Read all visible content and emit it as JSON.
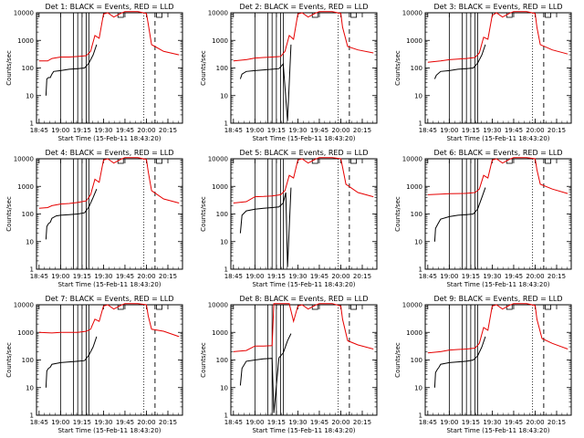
{
  "chart_data": {
    "type": "line",
    "x_unit": "time of day (15-Feb-11), hours",
    "xlim": [
      18.72,
      20.42
    ],
    "xticks": [
      "18:45",
      "19:00",
      "19:15",
      "19:30",
      "19:45",
      "20:00",
      "20:15"
    ],
    "xlabel": "Start Time (15-Feb-11 18:43:20)",
    "ylabel": "Counts/sec",
    "yscale": "log",
    "ylim": [
      1,
      10000
    ],
    "yticks": [
      "1",
      "10",
      "100",
      "1000",
      "10000"
    ],
    "grid": false,
    "colors": {
      "events": "#000000",
      "lld": "#e60000"
    },
    "panels": [
      {
        "title": "Det 1: BLACK = Events, RED = LLD",
        "events": [
          [
            18.83,
            10
          ],
          [
            18.84,
            40
          ],
          [
            18.86,
            45
          ],
          [
            18.88,
            45
          ],
          [
            18.9,
            60
          ],
          [
            18.92,
            75
          ],
          [
            19.0,
            80
          ],
          [
            19.1,
            90
          ],
          [
            19.2,
            95
          ],
          [
            19.28,
            100
          ],
          [
            19.33,
            150
          ],
          [
            19.38,
            300
          ],
          [
            19.42,
            700
          ]
        ],
        "lld": [
          [
            18.75,
            180
          ],
          [
            18.85,
            180
          ],
          [
            18.9,
            220
          ],
          [
            19.0,
            250
          ],
          [
            19.1,
            250
          ],
          [
            19.2,
            260
          ],
          [
            19.3,
            280
          ],
          [
            19.35,
            400
          ],
          [
            19.4,
            1500
          ],
          [
            19.45,
            1200
          ],
          [
            19.5,
            9000
          ],
          [
            19.55,
            10000
          ],
          [
            19.62,
            7000
          ],
          [
            19.7,
            9500
          ],
          [
            19.75,
            11000
          ],
          [
            19.9,
            11000
          ],
          [
            20.0,
            9500
          ],
          [
            20.02,
            4000
          ],
          [
            20.06,
            700
          ],
          [
            20.1,
            600
          ],
          [
            20.2,
            400
          ],
          [
            20.38,
            300
          ]
        ]
      },
      {
        "title": "Det 2: BLACK = Events, RED = LLD",
        "events": [
          [
            18.83,
            40
          ],
          [
            18.85,
            60
          ],
          [
            18.9,
            75
          ],
          [
            19.0,
            80
          ],
          [
            19.1,
            85
          ],
          [
            19.2,
            90
          ],
          [
            19.28,
            95
          ],
          [
            19.33,
            140
          ],
          [
            19.38,
            1.2
          ],
          [
            19.42,
            700
          ]
        ],
        "lld": [
          [
            18.75,
            180
          ],
          [
            18.9,
            200
          ],
          [
            19.0,
            230
          ],
          [
            19.1,
            240
          ],
          [
            19.2,
            250
          ],
          [
            19.3,
            260
          ],
          [
            19.35,
            400
          ],
          [
            19.4,
            1500
          ],
          [
            19.45,
            1100
          ],
          [
            19.5,
            9000
          ],
          [
            19.55,
            10000
          ],
          [
            19.62,
            7000
          ],
          [
            19.7,
            9500
          ],
          [
            19.75,
            11000
          ],
          [
            19.9,
            11000
          ],
          [
            20.0,
            9500
          ],
          [
            20.02,
            3000
          ],
          [
            20.08,
            600
          ],
          [
            20.2,
            450
          ],
          [
            20.38,
            350
          ]
        ]
      },
      {
        "title": "Det 3: BLACK = Events, RED = LLD",
        "events": [
          [
            18.83,
            40
          ],
          [
            18.85,
            55
          ],
          [
            18.9,
            75
          ],
          [
            19.0,
            80
          ],
          [
            19.1,
            90
          ],
          [
            19.2,
            95
          ],
          [
            19.28,
            100
          ],
          [
            19.33,
            150
          ],
          [
            19.38,
            300
          ],
          [
            19.42,
            700
          ]
        ],
        "lld": [
          [
            18.75,
            160
          ],
          [
            18.9,
            180
          ],
          [
            19.0,
            200
          ],
          [
            19.1,
            210
          ],
          [
            19.2,
            220
          ],
          [
            19.3,
            240
          ],
          [
            19.35,
            350
          ],
          [
            19.4,
            1300
          ],
          [
            19.45,
            1100
          ],
          [
            19.5,
            8000
          ],
          [
            19.55,
            10000
          ],
          [
            19.62,
            7000
          ],
          [
            19.7,
            9500
          ],
          [
            19.75,
            11000
          ],
          [
            19.9,
            11000
          ],
          [
            20.0,
            9500
          ],
          [
            20.02,
            3000
          ],
          [
            20.06,
            700
          ],
          [
            20.2,
            450
          ],
          [
            20.38,
            320
          ]
        ]
      },
      {
        "title": "Det 4: BLACK = Events, RED = LLD",
        "events": [
          [
            18.83,
            12
          ],
          [
            18.84,
            35
          ],
          [
            18.86,
            45
          ],
          [
            18.88,
            50
          ],
          [
            18.9,
            70
          ],
          [
            18.95,
            85
          ],
          [
            19.0,
            90
          ],
          [
            19.1,
            95
          ],
          [
            19.2,
            100
          ],
          [
            19.28,
            110
          ],
          [
            19.33,
            180
          ],
          [
            19.38,
            400
          ],
          [
            19.42,
            800
          ]
        ],
        "lld": [
          [
            18.75,
            160
          ],
          [
            18.85,
            170
          ],
          [
            18.9,
            200
          ],
          [
            19.0,
            230
          ],
          [
            19.1,
            240
          ],
          [
            19.2,
            260
          ],
          [
            19.3,
            300
          ],
          [
            19.35,
            500
          ],
          [
            19.4,
            1800
          ],
          [
            19.45,
            1400
          ],
          [
            19.5,
            9000
          ],
          [
            19.55,
            10000
          ],
          [
            19.62,
            7000
          ],
          [
            19.7,
            9500
          ],
          [
            19.75,
            11000
          ],
          [
            19.9,
            11000
          ],
          [
            20.0,
            9500
          ],
          [
            20.02,
            3500
          ],
          [
            20.06,
            700
          ],
          [
            20.2,
            350
          ],
          [
            20.38,
            250
          ]
        ]
      },
      {
        "title": "Det 5: BLACK = Events, RED = LLD",
        "events": [
          [
            18.83,
            20
          ],
          [
            18.85,
            90
          ],
          [
            18.9,
            130
          ],
          [
            19.0,
            150
          ],
          [
            19.1,
            160
          ],
          [
            19.2,
            170
          ],
          [
            19.28,
            180
          ],
          [
            19.33,
            250
          ],
          [
            19.36,
            600
          ],
          [
            19.38,
            1.2
          ],
          [
            19.42,
            900
          ]
        ],
        "lld": [
          [
            18.75,
            250
          ],
          [
            18.9,
            280
          ],
          [
            19.0,
            420
          ],
          [
            19.1,
            430
          ],
          [
            19.2,
            450
          ],
          [
            19.3,
            500
          ],
          [
            19.35,
            700
          ],
          [
            19.4,
            2500
          ],
          [
            19.45,
            2000
          ],
          [
            19.5,
            9000
          ],
          [
            19.55,
            10000
          ],
          [
            19.62,
            7000
          ],
          [
            19.7,
            9500
          ],
          [
            19.75,
            11000
          ],
          [
            19.9,
            11000
          ],
          [
            20.0,
            10000
          ],
          [
            20.02,
            5000
          ],
          [
            20.06,
            1200
          ],
          [
            20.2,
            600
          ],
          [
            20.38,
            420
          ]
        ]
      },
      {
        "title": "Det 6: BLACK = Events, RED = LLD",
        "events": [
          [
            18.83,
            10
          ],
          [
            18.84,
            30
          ],
          [
            18.87,
            45
          ],
          [
            18.9,
            65
          ],
          [
            19.0,
            80
          ],
          [
            19.1,
            90
          ],
          [
            19.2,
            95
          ],
          [
            19.28,
            100
          ],
          [
            19.33,
            150
          ],
          [
            19.38,
            400
          ],
          [
            19.42,
            900
          ]
        ],
        "lld": [
          [
            18.75,
            500
          ],
          [
            18.9,
            520
          ],
          [
            19.0,
            540
          ],
          [
            19.1,
            550
          ],
          [
            19.2,
            560
          ],
          [
            19.3,
            600
          ],
          [
            19.35,
            800
          ],
          [
            19.4,
            2500
          ],
          [
            19.45,
            2000
          ],
          [
            19.5,
            9000
          ],
          [
            19.55,
            10000
          ],
          [
            19.62,
            7000
          ],
          [
            19.7,
            9500
          ],
          [
            19.75,
            11000
          ],
          [
            19.9,
            11000
          ],
          [
            20.0,
            10000
          ],
          [
            20.02,
            4000
          ],
          [
            20.06,
            1200
          ],
          [
            20.2,
            800
          ],
          [
            20.38,
            550
          ]
        ]
      },
      {
        "title": "Det 7: BLACK = Events, RED = LLD",
        "events": [
          [
            18.83,
            10
          ],
          [
            18.84,
            40
          ],
          [
            18.86,
            50
          ],
          [
            18.88,
            55
          ],
          [
            18.9,
            70
          ],
          [
            19.0,
            80
          ],
          [
            19.1,
            85
          ],
          [
            19.2,
            90
          ],
          [
            19.28,
            95
          ],
          [
            19.33,
            150
          ],
          [
            19.38,
            300
          ],
          [
            19.42,
            700
          ]
        ],
        "lld": [
          [
            18.75,
            1000
          ],
          [
            18.9,
            950
          ],
          [
            19.0,
            1000
          ],
          [
            19.1,
            1000
          ],
          [
            19.2,
            1000
          ],
          [
            19.3,
            1100
          ],
          [
            19.35,
            1300
          ],
          [
            19.4,
            3000
          ],
          [
            19.45,
            2500
          ],
          [
            19.5,
            9000
          ],
          [
            19.55,
            10000
          ],
          [
            19.62,
            7000
          ],
          [
            19.7,
            9500
          ],
          [
            19.75,
            11000
          ],
          [
            19.9,
            11000
          ],
          [
            20.0,
            10000
          ],
          [
            20.02,
            4000
          ],
          [
            20.06,
            1300
          ],
          [
            20.2,
            1100
          ],
          [
            20.38,
            700
          ]
        ]
      },
      {
        "title": "Det 8: BLACK = Events, RED = LLD",
        "events": [
          [
            18.83,
            12
          ],
          [
            18.85,
            50
          ],
          [
            18.9,
            90
          ],
          [
            19.0,
            100
          ],
          [
            19.1,
            110
          ],
          [
            19.2,
            115
          ],
          [
            19.22,
            1.2
          ],
          [
            19.28,
            120
          ],
          [
            19.33,
            180
          ],
          [
            19.38,
            500
          ],
          [
            19.42,
            900
          ]
        ],
        "lld": [
          [
            18.75,
            200
          ],
          [
            18.9,
            220
          ],
          [
            19.0,
            320
          ],
          [
            19.1,
            320
          ],
          [
            19.2,
            330
          ],
          [
            19.22,
            11000
          ],
          [
            19.32,
            11000
          ],
          [
            19.35,
            11000
          ],
          [
            19.4,
            11000
          ],
          [
            19.45,
            2500
          ],
          [
            19.5,
            9000
          ],
          [
            19.55,
            10000
          ],
          [
            19.62,
            7000
          ],
          [
            19.7,
            9500
          ],
          [
            19.75,
            11000
          ],
          [
            19.9,
            11000
          ],
          [
            20.0,
            9000
          ],
          [
            20.02,
            3000
          ],
          [
            20.08,
            500
          ],
          [
            20.2,
            350
          ],
          [
            20.38,
            250
          ]
        ]
      },
      {
        "title": "Det 9: BLACK = Events, RED = LLD",
        "events": [
          [
            18.83,
            10
          ],
          [
            18.84,
            35
          ],
          [
            18.86,
            45
          ],
          [
            18.88,
            55
          ],
          [
            18.9,
            70
          ],
          [
            19.0,
            80
          ],
          [
            19.1,
            85
          ],
          [
            19.2,
            90
          ],
          [
            19.28,
            100
          ],
          [
            19.33,
            140
          ],
          [
            19.38,
            300
          ],
          [
            19.42,
            700
          ]
        ],
        "lld": [
          [
            18.75,
            180
          ],
          [
            18.9,
            200
          ],
          [
            19.0,
            230
          ],
          [
            19.1,
            240
          ],
          [
            19.2,
            250
          ],
          [
            19.3,
            270
          ],
          [
            19.35,
            400
          ],
          [
            19.4,
            1500
          ],
          [
            19.45,
            1200
          ],
          [
            19.5,
            9000
          ],
          [
            19.55,
            10000
          ],
          [
            19.62,
            7000
          ],
          [
            19.7,
            9500
          ],
          [
            19.75,
            11000
          ],
          [
            19.9,
            11000
          ],
          [
            20.0,
            9500
          ],
          [
            20.02,
            3000
          ],
          [
            20.08,
            600
          ],
          [
            20.2,
            400
          ],
          [
            20.38,
            250
          ]
        ]
      }
    ],
    "vertical_lines": {
      "solid": [
        19.0,
        19.15,
        19.2,
        19.25,
        19.3,
        19.33
      ],
      "dotted": [
        19.97
      ],
      "dashed": [
        20.1
      ]
    }
  }
}
